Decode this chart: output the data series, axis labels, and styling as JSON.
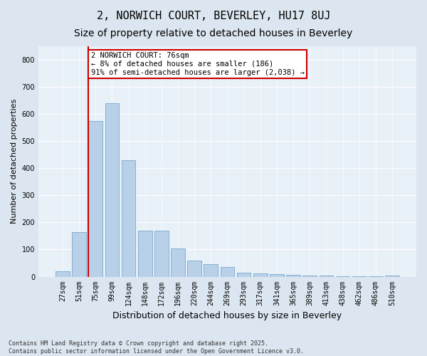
{
  "title": "2, NORWICH COURT, BEVERLEY, HU17 8UJ",
  "subtitle": "Size of property relative to detached houses in Beverley",
  "xlabel": "Distribution of detached houses by size in Beverley",
  "ylabel": "Number of detached properties",
  "categories": [
    "27sqm",
    "51sqm",
    "75sqm",
    "99sqm",
    "124sqm",
    "148sqm",
    "172sqm",
    "196sqm",
    "220sqm",
    "244sqm",
    "269sqm",
    "293sqm",
    "317sqm",
    "341sqm",
    "365sqm",
    "389sqm",
    "413sqm",
    "438sqm",
    "462sqm",
    "486sqm",
    "510sqm"
  ],
  "values": [
    20,
    165,
    575,
    640,
    430,
    170,
    170,
    103,
    58,
    47,
    35,
    15,
    12,
    10,
    8,
    5,
    4,
    2,
    1,
    1,
    5
  ],
  "bar_color": "#b8d0e8",
  "bar_edge_color": "#7aa8cc",
  "vline_color": "#cc0000",
  "annotation_text": "2 NORWICH COURT: 76sqm\n← 8% of detached houses are smaller (186)\n91% of semi-detached houses are larger (2,038) →",
  "annotation_box_color": "#ffffff",
  "annotation_box_edge": "#cc0000",
  "bg_color": "#dce6f0",
  "plot_bg_color": "#e8f0f8",
  "footer": "Contains HM Land Registry data © Crown copyright and database right 2025.\nContains public sector information licensed under the Open Government Licence v3.0.",
  "ylim": [
    0,
    850
  ],
  "yticks": [
    0,
    100,
    200,
    300,
    400,
    500,
    600,
    700,
    800
  ],
  "title_fontsize": 11,
  "subtitle_fontsize": 10,
  "tick_fontsize": 7,
  "ylabel_fontsize": 8,
  "xlabel_fontsize": 9,
  "annotation_fontsize": 7.5
}
